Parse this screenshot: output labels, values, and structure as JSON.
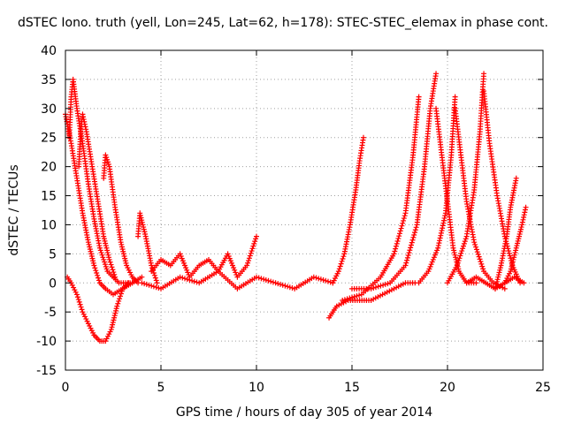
{
  "chart_data": {
    "type": "scatter",
    "title": "dSTEC Iono. truth (yell, Lon=245, Lat=62, h=178): STEC-STEC_elemax in phase cont.",
    "xlabel": "GPS time / hours of day 305 of year 2014",
    "ylabel": "dSTEC  / TECUs",
    "xlim": [
      0,
      25
    ],
    "ylim": [
      -15,
      40
    ],
    "x_ticks": [
      0,
      5,
      10,
      15,
      20,
      25
    ],
    "y_ticks": [
      -15,
      -10,
      -5,
      0,
      5,
      10,
      15,
      20,
      25,
      30,
      35,
      40
    ],
    "x_tick_labels": [
      "0",
      "5",
      "10",
      "15",
      "20",
      "25"
    ],
    "y_tick_labels": [
      "-15",
      "-10",
      "-5",
      "0",
      "5",
      "10",
      "15",
      "20",
      "25",
      "30",
      "35",
      "40"
    ],
    "grid": true,
    "legend": "none",
    "marker": "plus",
    "color": "#ff0000",
    "series": [
      {
        "x": [
          0.0,
          0.3,
          0.6,
          0.9,
          1.2,
          1.5,
          1.8,
          2.1,
          2.5,
          3.0,
          3.5,
          4.0
        ],
        "y": [
          29,
          24,
          18,
          12,
          7,
          3,
          0,
          -1,
          -2,
          -1,
          0,
          1
        ]
      },
      {
        "x": [
          0.2,
          0.3,
          0.4,
          0.6,
          0.9,
          1.2,
          1.5,
          1.8,
          2.2,
          2.8,
          3.5
        ],
        "y": [
          25,
          32,
          35,
          30,
          24,
          17,
          11,
          6,
          2,
          0,
          0
        ]
      },
      {
        "x": [
          0.7,
          0.8,
          0.9,
          1.1,
          1.4,
          1.7,
          2.0,
          2.3,
          2.6
        ],
        "y": [
          20,
          26,
          29,
          26,
          20,
          14,
          8,
          4,
          1
        ]
      },
      {
        "x": [
          0.1,
          0.3,
          0.6,
          0.9,
          1.2,
          1.5,
          1.8,
          2.1,
          2.4,
          2.7,
          3.0,
          3.3
        ],
        "y": [
          1,
          0,
          -2,
          -5,
          -7,
          -9,
          -10,
          -10,
          -8,
          -4,
          -1,
          0
        ]
      },
      {
        "x": [
          2.0,
          2.1,
          2.3,
          2.6,
          2.9,
          3.2,
          3.5,
          3.8
        ],
        "y": [
          18,
          22,
          20,
          13,
          7,
          3,
          1,
          0
        ]
      },
      {
        "x": [
          3.8,
          3.9,
          4.2,
          4.5,
          4.8
        ],
        "y": [
          8,
          12,
          8,
          3,
          0
        ]
      },
      {
        "x": [
          4.0,
          5.0,
          6.0,
          7.0,
          8.0,
          9.0,
          10.0,
          11.0,
          12.0,
          13.0,
          14.0
        ],
        "y": [
          0,
          -1,
          1,
          0,
          2,
          -1,
          1,
          0,
          -1,
          1,
          0
        ]
      },
      {
        "x": [
          4.5,
          5.0,
          5.5,
          6.0,
          6.5,
          7.0,
          7.5,
          8.0,
          8.5,
          9.0,
          9.5,
          10.0
        ],
        "y": [
          2,
          4,
          3,
          5,
          1,
          3,
          4,
          2,
          5,
          1,
          3,
          8
        ]
      },
      {
        "x": [
          14.0,
          14.3,
          14.6,
          14.9,
          15.2,
          15.4,
          15.6
        ],
        "y": [
          0,
          2,
          5,
          10,
          16,
          21,
          25
        ]
      },
      {
        "x": [
          13.8,
          14.2,
          14.8,
          15.4,
          16.0,
          16.6,
          17.2,
          17.8,
          18.3
        ],
        "y": [
          -6,
          -4,
          -3,
          -3,
          -3,
          -2,
          -1,
          0,
          0
        ]
      },
      {
        "x": [
          14.5,
          15.5,
          16.5,
          17.2,
          17.8,
          18.2,
          18.5
        ],
        "y": [
          -3,
          -2,
          1,
          5,
          12,
          22,
          32
        ]
      },
      {
        "x": [
          15.0,
          16.0,
          17.0,
          17.8,
          18.4,
          18.8,
          19.1,
          19.4
        ],
        "y": [
          -1,
          -1,
          0,
          3,
          10,
          20,
          30,
          36
        ]
      },
      {
        "x": [
          19.4,
          19.7,
          20.0,
          20.3,
          20.6,
          21.0,
          21.5
        ],
        "y": [
          30,
          22,
          14,
          6,
          2,
          0,
          0
        ]
      },
      {
        "x": [
          18.5,
          19.0,
          19.5,
          19.9,
          20.2,
          20.4
        ],
        "y": [
          0,
          2,
          6,
          12,
          22,
          32
        ]
      },
      {
        "x": [
          20.4,
          20.7,
          21.0,
          21.4,
          21.9,
          22.4,
          23.0
        ],
        "y": [
          30,
          22,
          14,
          7,
          2,
          0,
          -1
        ]
      },
      {
        "x": [
          20.0,
          20.5,
          21.0,
          21.4,
          21.7,
          21.9
        ],
        "y": [
          0,
          3,
          8,
          16,
          26,
          36
        ]
      },
      {
        "x": [
          21.9,
          22.2,
          22.6,
          23.0,
          23.4,
          23.8
        ],
        "y": [
          33,
          24,
          15,
          8,
          3,
          0
        ]
      },
      {
        "x": [
          22.5,
          22.8,
          23.1,
          23.3,
          23.6
        ],
        "y": [
          -1,
          3,
          8,
          13,
          18
        ]
      },
      {
        "x": [
          23.0,
          23.3,
          23.6,
          23.9,
          24.1
        ],
        "y": [
          0,
          2,
          6,
          10,
          13
        ]
      },
      {
        "x": [
          21.0,
          21.5,
          22.0,
          22.5,
          23.0,
          23.5,
          24.0
        ],
        "y": [
          0,
          1,
          0,
          -1,
          0,
          1,
          0
        ]
      }
    ]
  }
}
